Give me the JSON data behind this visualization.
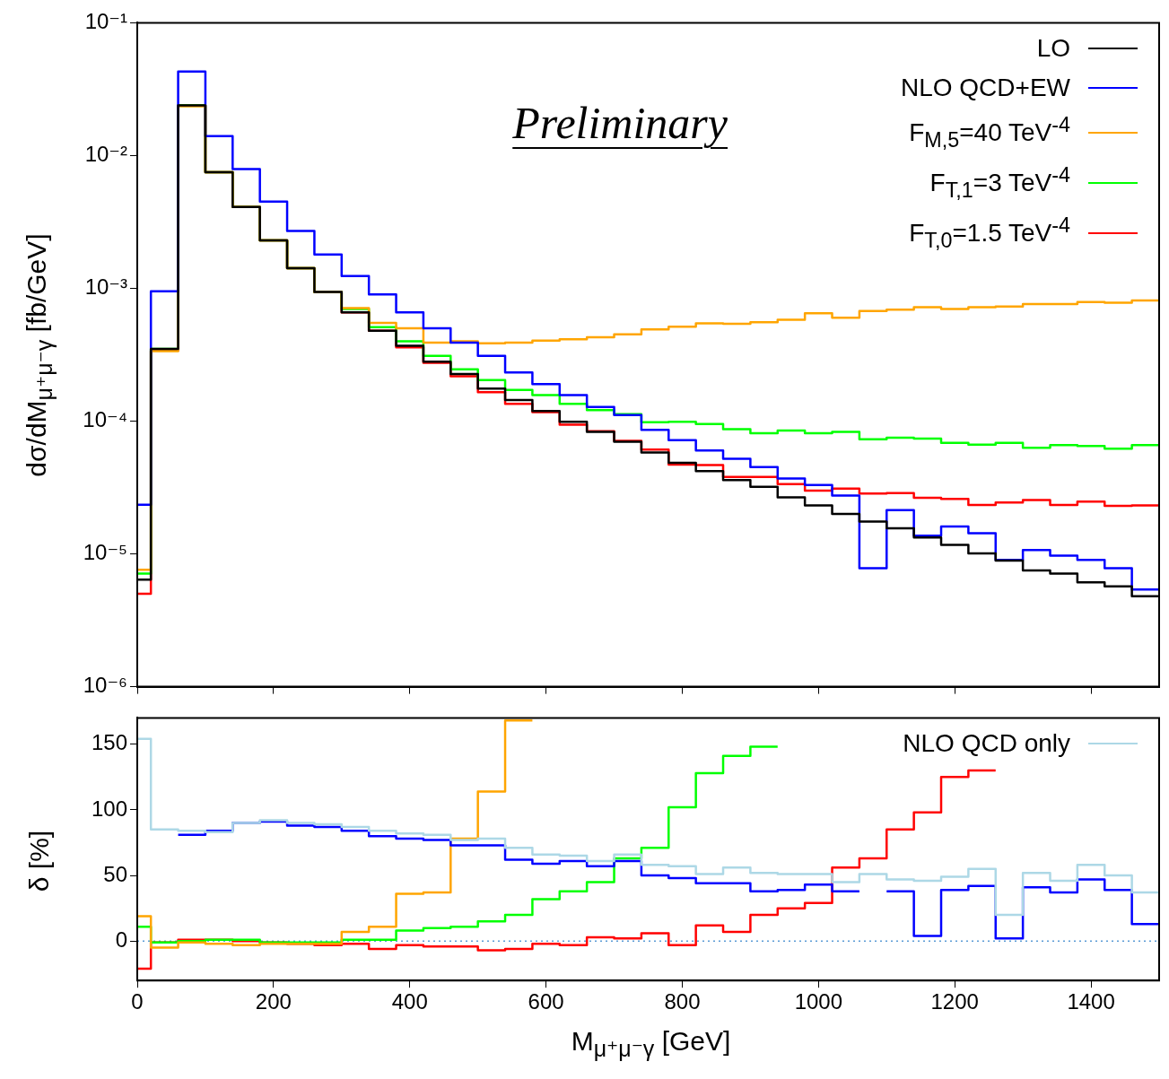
{
  "chart_data": [
    {
      "type": "histogram",
      "ylabel": "dσ/dM$_{μ⁺μ⁻γ}$ [fb/GeV]",
      "annotations": [
        "Preliminary"
      ],
      "log": true,
      "legend": "top right",
      "tick_labels": "y",
      "bins": [
        0,
        20,
        60,
        100,
        140,
        180,
        220,
        260,
        300,
        340,
        380,
        420,
        460,
        500,
        540,
        580,
        620,
        660,
        700,
        740,
        780,
        820,
        860,
        900,
        940,
        980,
        1020,
        1060,
        1100,
        1140,
        1180,
        1220,
        1260,
        1300,
        1340,
        1380,
        1420,
        1460,
        1500
      ],
      "xlim": [
        0,
        1500
      ],
      "xticks": [
        0,
        200,
        400,
        600,
        800,
        1000,
        1200,
        1400
      ],
      "ylim": [
        1e-06,
        0.1
      ],
      "yticks": [
        {
          "value": 1e-06,
          "label": "10⁻⁶"
        },
        {
          "value": 1e-05,
          "label": "10⁻⁵"
        },
        {
          "value": 0.0001,
          "label": "10⁻⁴"
        },
        {
          "value": 0.001,
          "label": "10⁻³"
        },
        {
          "value": 0.01,
          "label": "10⁻²"
        },
        {
          "value": 0.1,
          "label": "10⁻¹"
        }
      ],
      "series": [
        {
          "name": "LO",
          "color": "#000000",
          "values": [
            6.4e-06,
            0.00035,
            0.0239,
            0.0075,
            0.0041,
            0.0023,
            0.00142,
            0.00094,
            0.00066,
            0.00048,
            0.00037,
            0.00028,
            0.000226,
            0.000176,
            0.000144,
            0.000119,
            9.9e-05,
            8.3e-05,
            7e-05,
            5.8e-05,
            4.85e-05,
            4.2e-05,
            3.6e-05,
            3.2e-05,
            2.67e-05,
            2.32e-05,
            2e-05,
            1.75e-05,
            1.56e-05,
            1.33e-05,
            1.17e-05,
            1.01e-05,
            8.9e-06,
            7.5e-06,
            7.1e-06,
            6.1e-06,
            5.7e-06,
            4.8e-06
          ]
        },
        {
          "name": "NLO QCD+EW",
          "color": "#0000ff",
          "values": [
            2.35e-05,
            0.00095,
            0.043,
            0.014,
            0.0079,
            0.0045,
            0.0027,
            0.0018,
            0.00124,
            0.0009,
            0.00066,
            0.0005,
            0.00039,
            0.00031,
            0.000233,
            0.00019,
            0.000157,
            0.000128,
            0.000111,
            8.6e-05,
            7.2e-05,
            6e-05,
            5.2e-05,
            4.5e-05,
            3.7e-05,
            3.3e-05,
            2.75e-05,
            7.8e-06,
            2.14e-05,
            1.37e-05,
            1.61e-05,
            1.43e-05,
            9e-06,
            1.07e-05,
            9.7e-06,
            9e-06,
            7.8e-06,
            5.4e-06
          ]
        },
        {
          "name": "F$_{M,5}$=40 TeV$^{-4}$",
          "color": "#ffa500",
          "values": [
            7.6e-06,
            0.000337,
            0.0235,
            0.0075,
            0.0041,
            0.0023,
            0.00142,
            0.00094,
            0.00071,
            0.00055,
            0.0005,
            0.00039,
            0.0004,
            0.000385,
            0.00039,
            0.000404,
            0.000413,
            0.000428,
            0.00045,
            0.00049,
            0.000515,
            0.000545,
            0.00054,
            0.000555,
            0.00058,
            0.00065,
            0.0006,
            0.000675,
            0.00069,
            0.00072,
            0.0007,
            0.00072,
            0.00073,
            0.00076,
            0.00076,
            0.00079,
            0.00078,
            0.00081
          ]
        },
        {
          "name": "F$_{T,1}$=3 TeV$^{-4}$",
          "color": "#00ff00",
          "values": [
            7.1e-06,
            0.00035,
            0.0239,
            0.0075,
            0.0041,
            0.0023,
            0.00142,
            0.00094,
            0.0007,
            0.00051,
            0.0004,
            0.00031,
            0.000246,
            0.000204,
            0.000172,
            0.000157,
            0.000135,
            0.000121,
            0.000113,
            9.8e-05,
            9.9e-05,
            9.5e-05,
            8.7e-05,
            8.1e-05,
            8.5e-05,
            8.1e-05,
            8.3e-05,
            7.3e-05,
            7.5e-05,
            7.4e-05,
            6.85e-05,
            6.65e-05,
            6.85e-05,
            6.3e-05,
            6.6e-05,
            6.5e-05,
            6.2e-05,
            6.6e-05
          ]
        },
        {
          "name": "F$_{T,0}$=1.5 TeV$^{-4}$",
          "color": "#ff0000",
          "values": [
            5e-06,
            0.00034,
            0.0239,
            0.0075,
            0.0041,
            0.0023,
            0.00142,
            0.00094,
            0.00066,
            0.00048,
            0.00036,
            0.000275,
            0.000218,
            0.000165,
            0.000135,
            0.000117,
            9.4e-05,
            8.4e-05,
            7.1e-05,
            6.1e-05,
            4.7e-05,
            4.67e-05,
            3.8e-05,
            3.8e-05,
            3.35e-05,
            3e-05,
            3.1e-05,
            2.85e-05,
            2.87e-05,
            2.65e-05,
            2.6e-05,
            2.34e-05,
            2.44e-05,
            2.55e-05,
            2.34e-05,
            2.48e-05,
            2.3e-05,
            2.32e-05
          ]
        }
      ]
    },
    {
      "type": "step",
      "xlabel": "M$_{μ⁺μ⁻γ}$ [GeV]",
      "ylabel": "δ [%]",
      "legend": "top right",
      "xlim": [
        0,
        1500
      ],
      "xticks": [
        0,
        200,
        400,
        600,
        800,
        1000,
        1200,
        1400
      ],
      "ylim": [
        -30,
        170
      ],
      "yticks": [
        0,
        50,
        100,
        150
      ],
      "ref_lines": [
        {
          "axis": "y",
          "value": 0,
          "color": "#5b9bd5",
          "line_style": "dotted"
        }
      ],
      "series": [
        {
          "name": "NLO QCD only",
          "color": "#add8e6",
          "x": [
            0,
            20,
            60,
            100,
            140,
            180,
            220,
            260,
            300,
            340,
            380,
            420,
            460,
            500,
            540,
            580,
            620,
            660,
            700,
            740,
            780,
            820,
            860,
            900,
            940,
            980,
            1020,
            1060,
            1100,
            1140,
            1180,
            1220,
            1260,
            1300,
            1340,
            1380,
            1420,
            1460,
            1500
          ],
          "values": [
            154,
            85,
            84,
            83,
            90,
            92,
            90,
            89,
            87,
            84,
            82,
            81,
            77,
            78,
            71,
            66,
            65,
            61,
            66,
            58,
            57,
            51,
            56,
            52,
            51,
            51,
            45,
            51,
            47,
            46,
            49,
            55,
            20,
            52,
            46,
            58,
            50,
            37,
            37
          ]
        },
        {
          "color": "#0000ff",
          "x": [
            60,
            100,
            140,
            180,
            220,
            260,
            300,
            340,
            380,
            420,
            460,
            500,
            540,
            580,
            620,
            660,
            700,
            740,
            780,
            820,
            860,
            900,
            940,
            980,
            1020,
            1060,
            1100,
            1140,
            1180,
            1220,
            1260,
            1300,
            1340,
            1380,
            1420,
            1460,
            1500
          ],
          "values": [
            81,
            84,
            90,
            91,
            88,
            87,
            84,
            80,
            78,
            77,
            73,
            73,
            62,
            59,
            61,
            57,
            61,
            50,
            48,
            44,
            44,
            38,
            39,
            43,
            38,
            null,
            38,
            4,
            39,
            42,
            2,
            41,
            37,
            47,
            39,
            13,
            13
          ]
        },
        {
          "color": "#ffa500",
          "x": [
            0,
            20,
            60,
            100,
            140,
            180,
            220,
            260,
            300,
            340,
            380,
            420,
            460,
            500,
            540,
            580
          ],
          "values": [
            19,
            -5,
            -1,
            -2,
            -3,
            -2,
            -2,
            -2,
            7,
            11,
            36,
            37,
            78,
            114,
            168,
            168
          ]
        },
        {
          "color": "#00ff00",
          "x": [
            0,
            20,
            60,
            100,
            140,
            180,
            220,
            260,
            300,
            340,
            380,
            420,
            460,
            500,
            540,
            580,
            620,
            660,
            700,
            740,
            780,
            820,
            860,
            900,
            940
          ],
          "values": [
            11,
            -1,
            0,
            1,
            1,
            -1,
            -1,
            -1,
            1,
            1,
            8,
            10,
            11,
            15,
            20,
            32,
            38,
            45,
            63,
            71,
            102,
            128,
            141,
            148,
            148
          ]
        },
        {
          "color": "#ff0000",
          "x": [
            0,
            20,
            60,
            100,
            140,
            180,
            220,
            260,
            300,
            340,
            380,
            420,
            460,
            500,
            540,
            580,
            620,
            660,
            700,
            740,
            780,
            820,
            860,
            900,
            940,
            980,
            1020,
            1060,
            1100,
            1140,
            1180,
            1220,
            1260
          ],
          "values": [
            -21,
            -1,
            1,
            1,
            0,
            -1,
            -2,
            -3,
            -2,
            -6,
            -3,
            -4,
            -4,
            -7,
            -6,
            -2,
            -3,
            3,
            2,
            6,
            -3,
            12,
            7,
            20,
            25,
            29,
            56,
            63,
            85,
            98,
            125,
            130,
            130
          ]
        }
      ]
    }
  ]
}
